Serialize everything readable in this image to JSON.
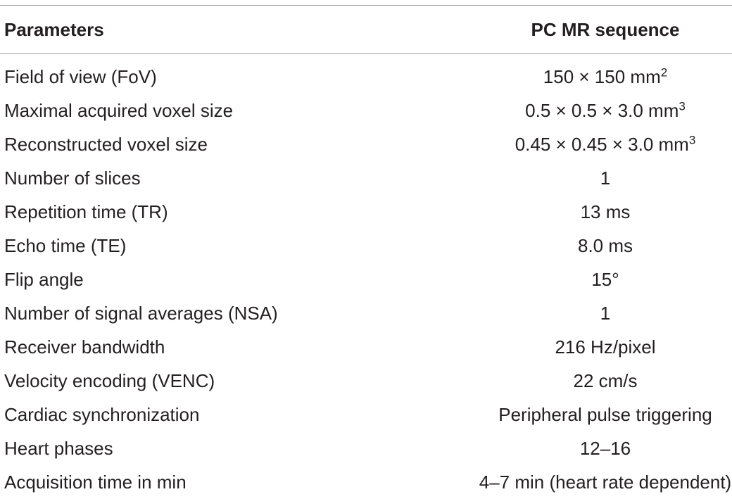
{
  "table": {
    "headers": {
      "parameter": "Parameters",
      "value": "PC MR sequence"
    },
    "rows": [
      {
        "parameter": "Field of view (FoV)",
        "value": "150 × 150 mm",
        "sup": "2"
      },
      {
        "parameter": "Maximal acquired voxel size",
        "value": "0.5 × 0.5 × 3.0 mm",
        "sup": "3"
      },
      {
        "parameter": "Reconstructed voxel size",
        "value": "0.45 × 0.45 × 3.0 mm",
        "sup": "3"
      },
      {
        "parameter": "Number of slices",
        "value": "1",
        "sup": ""
      },
      {
        "parameter": "Repetition time (TR)",
        "value": "13 ms",
        "sup": ""
      },
      {
        "parameter": "Echo time (TE)",
        "value": "8.0 ms",
        "sup": ""
      },
      {
        "parameter": "Flip angle",
        "value": "15°",
        "sup": ""
      },
      {
        "parameter": "Number of signal averages (NSA)",
        "value": "1",
        "sup": ""
      },
      {
        "parameter": "Receiver bandwidth",
        "value": "216 Hz/pixel",
        "sup": ""
      },
      {
        "parameter": "Velocity encoding (VENC)",
        "value": "22 cm/s",
        "sup": ""
      },
      {
        "parameter": "Cardiac synchronization",
        "value": "Peripheral pulse triggering",
        "sup": ""
      },
      {
        "parameter": "Heart phases",
        "value": "12–16",
        "sup": ""
      },
      {
        "parameter": "Acquisition time in min",
        "value": "4–7 min (heart rate dependent)",
        "sup": ""
      }
    ]
  }
}
